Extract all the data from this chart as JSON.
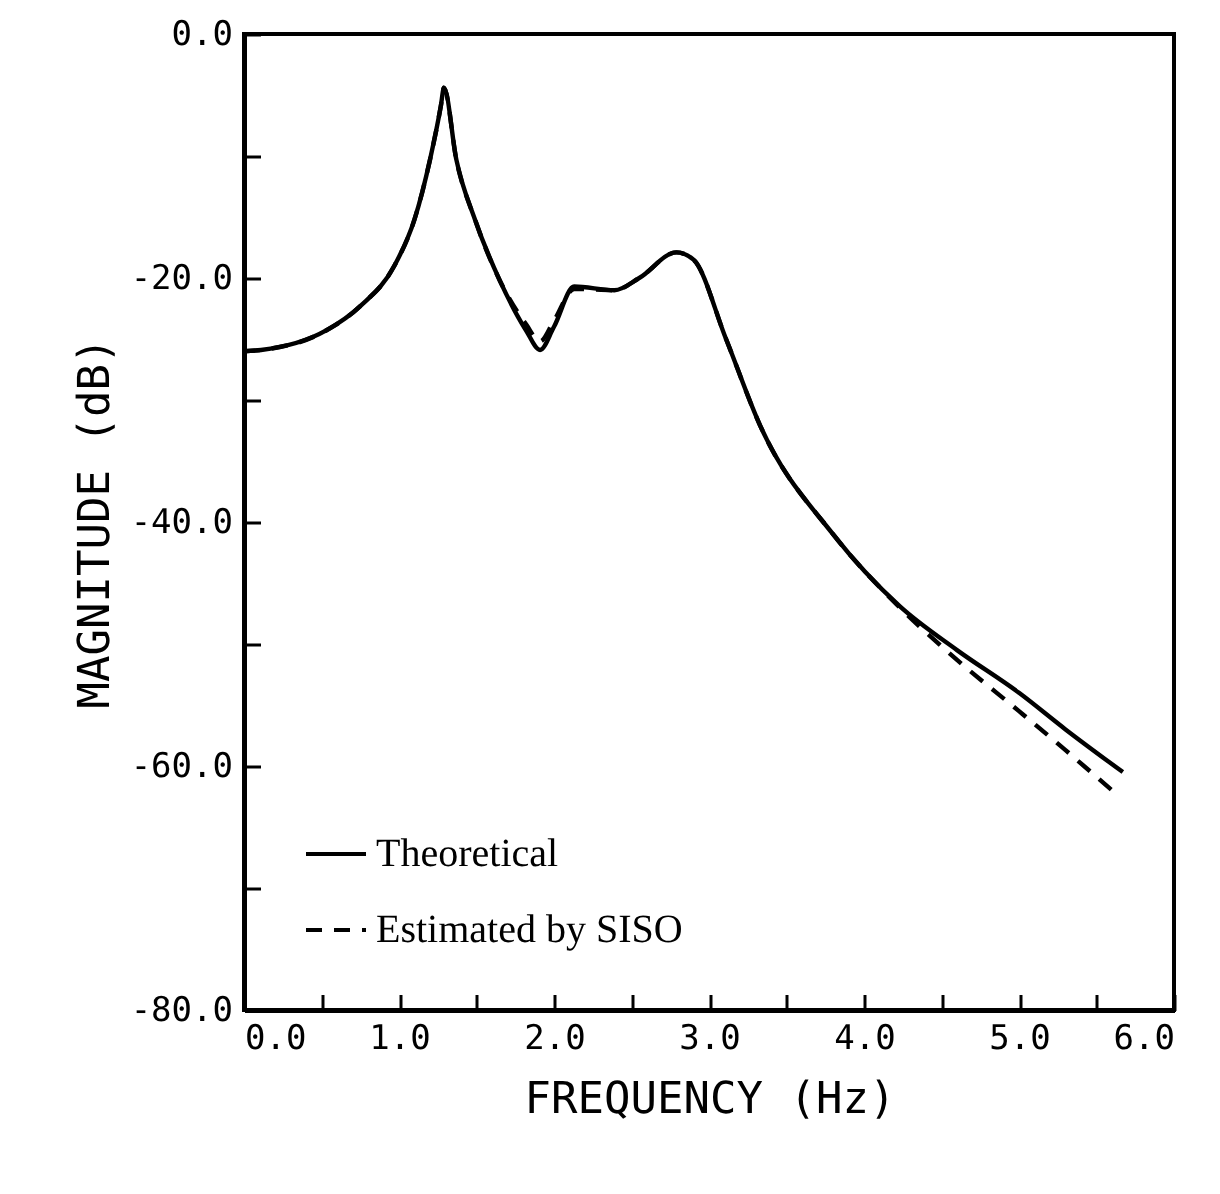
{
  "chart_data": {
    "type": "line",
    "xlabel": "FREQUENCY (Hz)",
    "ylabel": "MAGNITUDE (dB)",
    "xlim": [
      0,
      6
    ],
    "ylim": [
      -80,
      0
    ],
    "xticks": [
      {
        "value": 0,
        "label": "0.0"
      },
      {
        "value": 0.5,
        "label": null
      },
      {
        "value": 1,
        "label": "1.0"
      },
      {
        "value": 1.5,
        "label": null
      },
      {
        "value": 2,
        "label": "2.0"
      },
      {
        "value": 2.5,
        "label": null
      },
      {
        "value": 3,
        "label": "3.0"
      },
      {
        "value": 3.5,
        "label": null
      },
      {
        "value": 4,
        "label": "4.0"
      },
      {
        "value": 4.5,
        "label": null
      },
      {
        "value": 5,
        "label": "5.0"
      },
      {
        "value": 5.5,
        "label": null
      },
      {
        "value": 6,
        "label": "6.0"
      }
    ],
    "yticks": [
      {
        "value": 0,
        "label": "0.0"
      },
      {
        "value": -10,
        "label": null
      },
      {
        "value": -20,
        "label": "-20.0"
      },
      {
        "value": -30,
        "label": null
      },
      {
        "value": -40,
        "label": "-40.0"
      },
      {
        "value": -50,
        "label": null
      },
      {
        "value": -60,
        "label": "-60.0"
      },
      {
        "value": -70,
        "label": null
      },
      {
        "value": -80,
        "label": "-80.0"
      }
    ],
    "legend": "bottom left",
    "series": [
      {
        "name": "Theoretical",
        "color": "#000000",
        "line_style": "solid",
        "x": [
          0,
          0.11,
          0.53,
          0.75,
          0.97,
          1.1,
          1.2,
          1.27,
          1.29,
          1.37,
          1.49,
          1.65,
          1.82,
          1.91,
          2.0,
          2.13,
          2.39,
          2.55,
          2.79,
          2.9,
          3.11,
          3.33,
          3.8,
          4.23,
          4.6,
          5.0,
          5.3,
          5.67
        ],
        "values": [
          -26,
          -25.9,
          -24.3,
          -22.3,
          -19,
          -15.2,
          -10.3,
          -5.9,
          -4.4,
          -10.3,
          -15.2,
          -20.2,
          -24.3,
          -25.9,
          -24,
          -20.7,
          -21,
          -20,
          -17.9,
          -18.5,
          -25,
          -32.1,
          -41,
          -46.9,
          -50.5,
          -54,
          -57,
          -60.5
        ]
      },
      {
        "name": "Estimated by SISO",
        "color": "#000000",
        "line_style": "dashed",
        "x": [
          0,
          0.11,
          0.53,
          0.75,
          0.97,
          1.1,
          1.2,
          1.27,
          1.29,
          1.37,
          1.49,
          1.65,
          1.82,
          1.91,
          2.0,
          2.13,
          2.39,
          2.55,
          2.79,
          2.9,
          3.11,
          3.33,
          3.8,
          4.23,
          4.6,
          5.0,
          5.3,
          5.6
        ],
        "values": [
          -26,
          -25.9,
          -24.3,
          -22.3,
          -19,
          -15.2,
          -10.3,
          -5.9,
          -4.4,
          -10.3,
          -15.2,
          -20.2,
          -23.8,
          -25.2,
          -23.5,
          -20.9,
          -21,
          -20,
          -17.9,
          -18.5,
          -25,
          -32.1,
          -41,
          -47,
          -51.3,
          -55.5,
          -58.7,
          -62
        ]
      }
    ]
  }
}
